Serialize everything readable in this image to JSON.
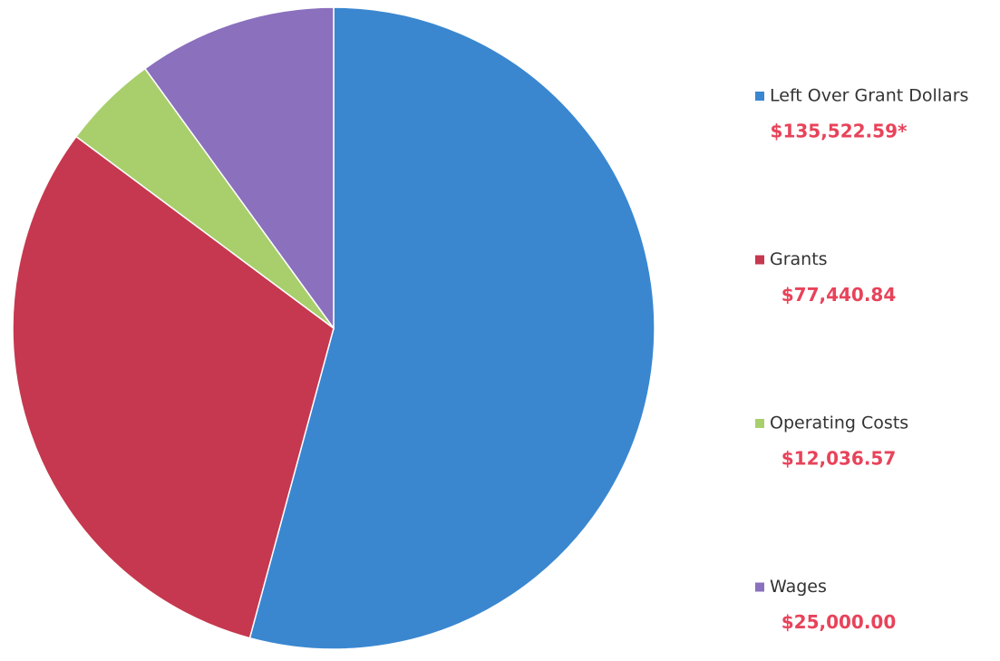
{
  "chart_data": {
    "type": "pie",
    "categories": [
      "Left Over Grant Dollars",
      "Grants",
      "Operating Costs",
      "Wages"
    ],
    "values": [
      135522.59,
      77440.84,
      12036.57,
      25000.0
    ],
    "value_labels": [
      "$135,522.59*",
      "$77,440.84",
      "$12,036.57",
      "$25,000.00"
    ],
    "colors": [
      "#3a87d0",
      "#c6384f",
      "#a8cf6c",
      "#8a70bd"
    ]
  }
}
